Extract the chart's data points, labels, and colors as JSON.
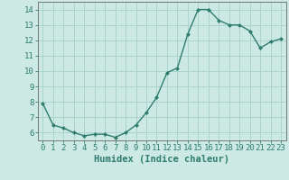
{
  "x": [
    0,
    1,
    2,
    3,
    4,
    5,
    6,
    7,
    8,
    9,
    10,
    11,
    12,
    13,
    14,
    15,
    16,
    17,
    18,
    19,
    20,
    21,
    22,
    23
  ],
  "y": [
    7.9,
    6.5,
    6.3,
    6.0,
    5.8,
    5.9,
    5.9,
    5.7,
    6.0,
    6.5,
    7.3,
    8.3,
    9.9,
    10.2,
    12.4,
    14.0,
    14.0,
    13.3,
    13.0,
    13.0,
    12.6,
    11.5,
    11.9,
    12.1
  ],
  "line_color": "#2e7d6e",
  "marker": "D",
  "marker_size": 2,
  "bg_color": "#cce9e4",
  "grid_color": "#aad4cc",
  "xlabel": "Humidex (Indice chaleur)",
  "xlim": [
    -0.5,
    23.5
  ],
  "ylim": [
    5.5,
    14.5
  ],
  "yticks": [
    6,
    7,
    8,
    9,
    10,
    11,
    12,
    13,
    14
  ],
  "xticks": [
    0,
    1,
    2,
    3,
    4,
    5,
    6,
    7,
    8,
    9,
    10,
    11,
    12,
    13,
    14,
    15,
    16,
    17,
    18,
    19,
    20,
    21,
    22,
    23
  ],
  "tick_fontsize": 6.5,
  "xlabel_fontsize": 7.5,
  "line_width": 1.0
}
